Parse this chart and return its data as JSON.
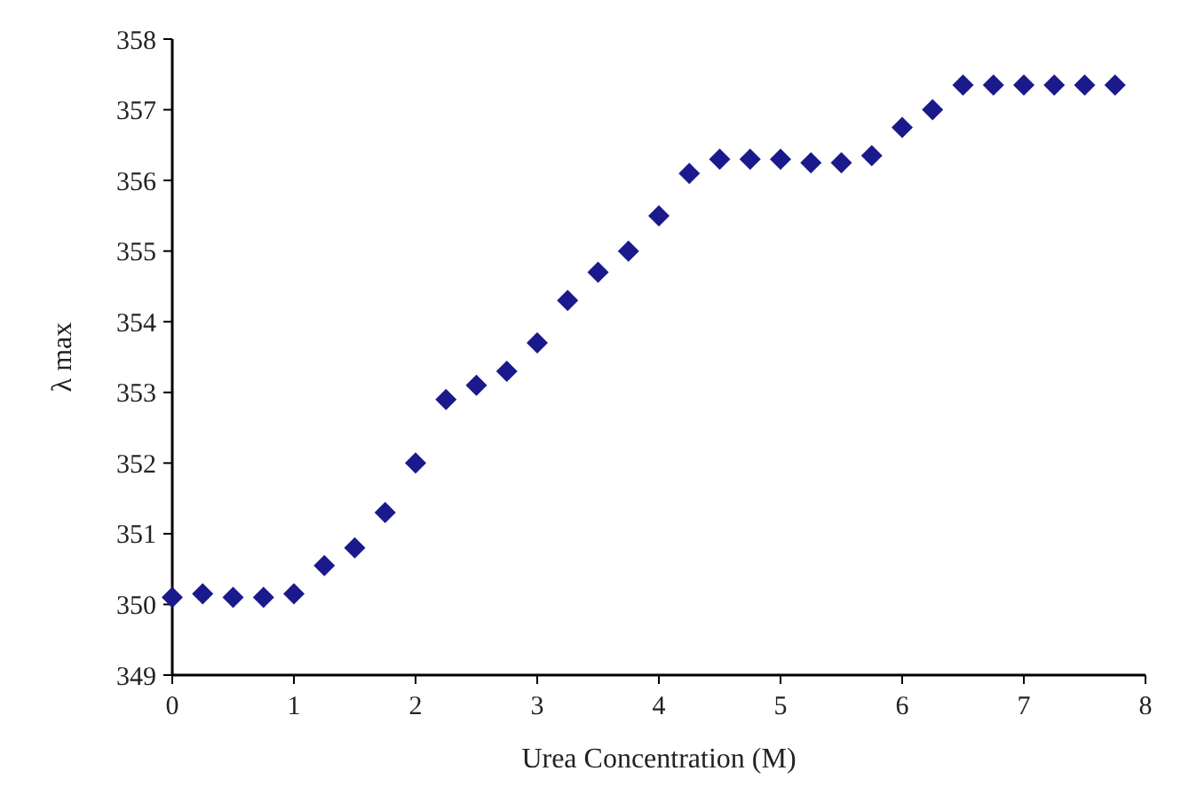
{
  "chart_data": {
    "type": "scatter",
    "xlabel": "Urea Concentration (M)",
    "ylabel": "λ max",
    "marker": "diamond",
    "color": "#1a1a8c",
    "x": [
      0,
      0.25,
      0.5,
      0.75,
      1,
      1.25,
      1.5,
      1.75,
      2,
      2.25,
      2.5,
      2.75,
      3,
      3.25,
      3.5,
      3.75,
      4,
      4.25,
      4.5,
      4.75,
      5,
      5.25,
      5.5,
      5.75,
      6,
      6.25,
      6.5,
      6.75,
      7,
      7.25,
      7.5,
      7.75
    ],
    "values": [
      350.1,
      350.15,
      350.1,
      350.1,
      350.15,
      350.55,
      350.8,
      351.3,
      352.0,
      352.9,
      353.1,
      353.3,
      353.7,
      354.3,
      354.7,
      355.0,
      355.5,
      356.1,
      356.3,
      356.3,
      356.3,
      356.25,
      356.25,
      356.35,
      356.75,
      357.0,
      357.35,
      357.35,
      357.35,
      357.35,
      357.35,
      357.35
    ],
    "xlim": [
      0,
      8
    ],
    "xticks": [
      0,
      1,
      2,
      3,
      4,
      5,
      6,
      7,
      8
    ],
    "ylim": [
      349,
      358
    ],
    "yticks": [
      349,
      350,
      351,
      352,
      353,
      354,
      355,
      356,
      357,
      358
    ],
    "grid": false
  }
}
